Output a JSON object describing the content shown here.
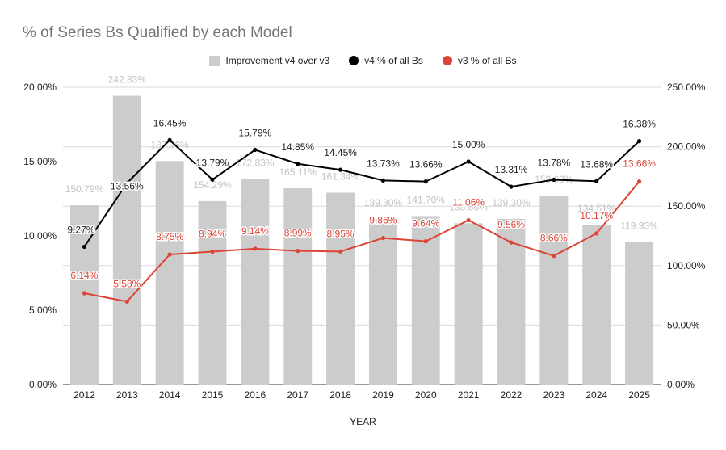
{
  "chart_data": {
    "type": "bar+line",
    "title": "% of Series Bs Qualified by each Model",
    "xlabel": "YEAR",
    "categories": [
      "2012",
      "2013",
      "2014",
      "2015",
      "2016",
      "2017",
      "2018",
      "2019",
      "2020",
      "2021",
      "2022",
      "2023",
      "2024",
      "2025"
    ],
    "left_axis": {
      "min": 0,
      "max": 20,
      "ticks": [
        "0.00%",
        "5.00%",
        "10.00%",
        "15.00%",
        "20.00%"
      ]
    },
    "right_axis": {
      "min": 0,
      "max": 250,
      "ticks": [
        "0.00%",
        "50.00%",
        "100.00%",
        "150.00%",
        "200.00%",
        "250.00%"
      ]
    },
    "legend_position": "top",
    "grid": true,
    "series": [
      {
        "name": "Improvement v4 over v3",
        "kind": "bar",
        "axis": "right",
        "color": "#cccccc",
        "label_color": "#c4c4c4",
        "values": [
          150.79,
          242.83,
          187.96,
          154.29,
          172.83,
          165.11,
          161.34,
          139.3,
          141.7,
          135.66,
          139.3,
          159.0,
          134.51,
          119.93
        ],
        "labels": [
          "150.79%",
          "242.83%",
          "187.96%",
          "154.29%",
          "172.83%",
          "165.11%",
          "161.34%",
          "139.30%",
          "141.70%",
          "135.66%",
          "139.30%",
          "159.00%",
          "134.51%",
          "119.93%"
        ]
      },
      {
        "name": "v4 % of all Bs",
        "kind": "line",
        "axis": "left",
        "color": "#000000",
        "label_color": "#222222",
        "values": [
          9.27,
          13.56,
          16.45,
          13.79,
          15.79,
          14.85,
          14.45,
          13.73,
          13.66,
          15.0,
          13.31,
          13.78,
          13.68,
          16.38
        ],
        "labels": [
          "9.27%",
          "13.56%",
          "16.45%",
          "13.79%",
          "15.79%",
          "14.85%",
          "14.45%",
          "13.73%",
          "13.66%",
          "15.00%",
          "13.31%",
          "13.78%",
          "13.68%",
          "16.38%"
        ]
      },
      {
        "name": "v3 % of all Bs",
        "kind": "line",
        "axis": "left",
        "color": "#db4437",
        "label_color": "#db4437",
        "values": [
          6.14,
          5.58,
          8.75,
          8.94,
          9.14,
          8.99,
          8.95,
          9.86,
          9.64,
          11.06,
          9.56,
          8.66,
          10.17,
          13.66
        ],
        "labels": [
          "6.14%",
          "5.58%",
          "8.75%",
          "8.94%",
          "9.14%",
          "8.99%",
          "8.95%",
          "9.86%",
          "9.64%",
          "11.06%",
          "9.56%",
          "8.66%",
          "10.17%",
          "13.66%"
        ]
      }
    ]
  }
}
